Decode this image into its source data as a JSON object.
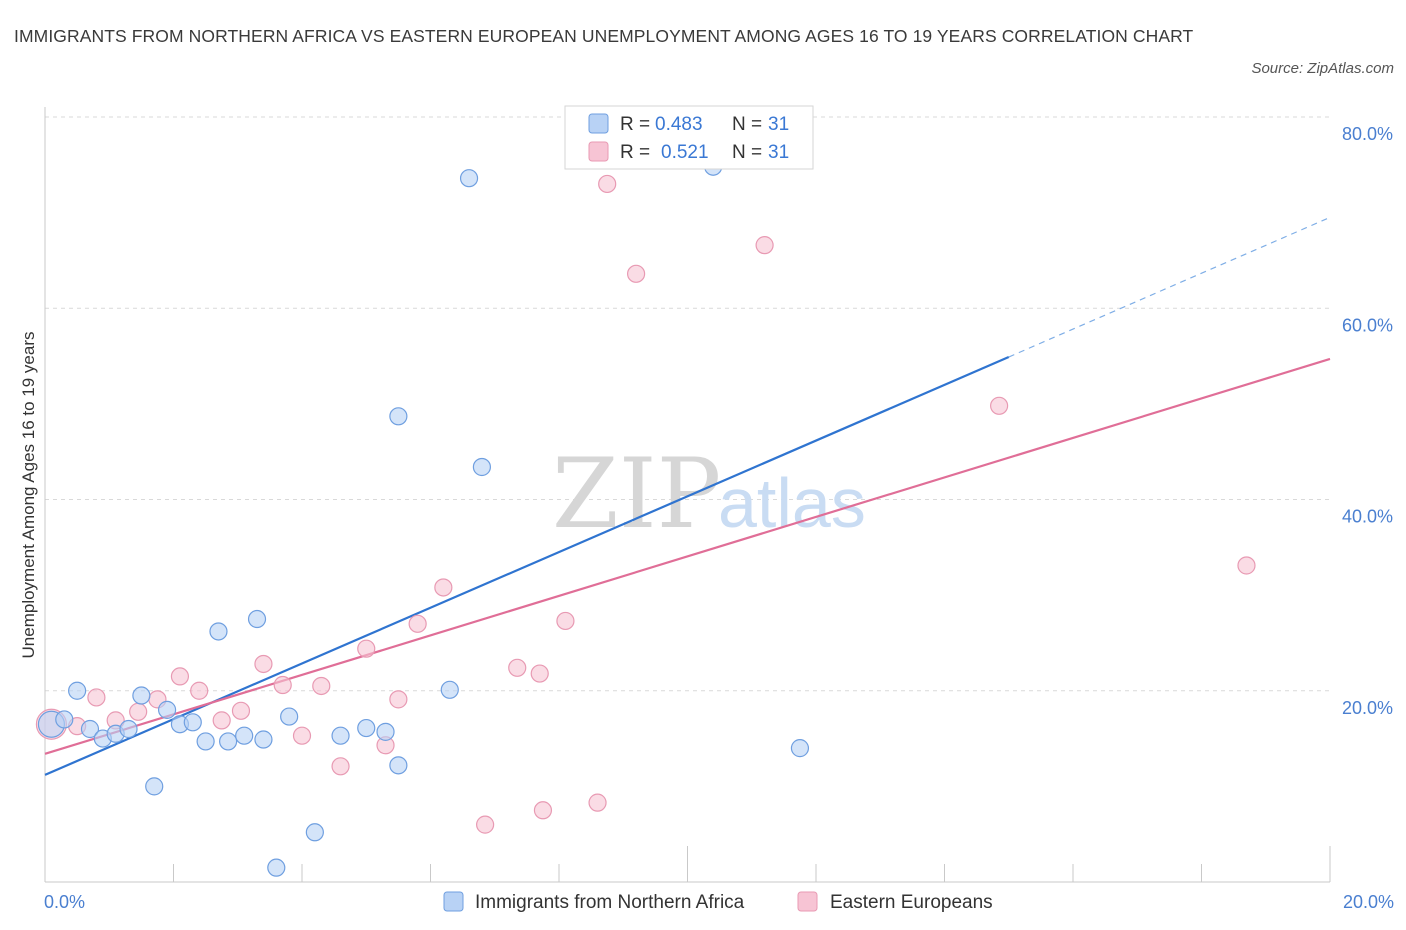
{
  "title": "IMMIGRANTS FROM NORTHERN AFRICA VS EASTERN EUROPEAN UNEMPLOYMENT AMONG AGES 16 TO 19 YEARS CORRELATION CHART",
  "source": "Source: ZipAtlas.com",
  "watermark": {
    "zip": "ZIP",
    "atlas": "atlas"
  },
  "colors": {
    "blue_fill": "#b8d2f5",
    "blue_stroke": "#6f9fe0",
    "blue_line": "#2f74d0",
    "pink_fill": "#f7c4d4",
    "pink_stroke": "#e89ab3",
    "pink_line": "#e06e97",
    "grid": "#d9d9d9",
    "axis_label": "#4a7fd0"
  },
  "legend": {
    "rows": [
      {
        "r_label": "R =",
        "r_value": "0.483",
        "n_label": "N =",
        "n_value": "31"
      },
      {
        "r_label": "R =",
        "r_value": "0.521",
        "n_label": "N =",
        "n_value": "31"
      }
    ]
  },
  "chart_data": {
    "type": "scatter",
    "title": "IMMIGRANTS FROM NORTHERN AFRICA VS EASTERN EUROPEAN UNEMPLOYMENT AMONG AGES 16 TO 19 YEARS CORRELATION CHART",
    "xlabel": "",
    "ylabel": "Unemployment Among Ages 16 to 19 years",
    "xlim": [
      0,
      20
    ],
    "ylim": [
      0,
      80
    ],
    "x_tick_labels": [
      "0.0%",
      "20.0%"
    ],
    "y_ticks": [
      20,
      40,
      60,
      80
    ],
    "y_tick_labels": [
      "20.0%",
      "40.0%",
      "60.0%",
      "80.0%"
    ],
    "grid": true,
    "legend_position": "top-center",
    "series": [
      {
        "name": "Immigrants from Northern Africa",
        "color": "#6f9fe0",
        "points": [
          [
            0.1,
            16.5
          ],
          [
            0.3,
            17.0
          ],
          [
            0.5,
            20.0
          ],
          [
            0.7,
            16.0
          ],
          [
            0.9,
            15.0
          ],
          [
            1.1,
            15.5
          ],
          [
            1.3,
            16.0
          ],
          [
            1.5,
            19.5
          ],
          [
            1.7,
            10.0
          ],
          [
            1.9,
            18.0
          ],
          [
            2.1,
            16.5
          ],
          [
            2.3,
            16.7
          ],
          [
            2.5,
            14.7
          ],
          [
            2.7,
            26.2
          ],
          [
            2.85,
            14.7
          ],
          [
            3.1,
            15.3
          ],
          [
            3.3,
            27.5
          ],
          [
            3.4,
            14.9
          ],
          [
            3.6,
            1.5
          ],
          [
            3.8,
            17.3
          ],
          [
            4.2,
            5.2
          ],
          [
            4.6,
            15.3
          ],
          [
            5.0,
            16.1
          ],
          [
            5.3,
            15.7
          ],
          [
            5.5,
            12.2
          ],
          [
            5.5,
            48.7
          ],
          [
            6.3,
            20.1
          ],
          [
            6.6,
            73.6
          ],
          [
            6.8,
            43.4
          ],
          [
            10.4,
            74.8
          ],
          [
            11.75,
            14.0
          ]
        ]
      },
      {
        "name": "Eastern Europeans",
        "color": "#e89ab3",
        "points": [
          [
            0.1,
            16.5
          ],
          [
            0.5,
            16.3
          ],
          [
            0.8,
            19.3
          ],
          [
            1.1,
            16.9
          ],
          [
            1.45,
            17.8
          ],
          [
            1.75,
            19.1
          ],
          [
            2.1,
            21.5
          ],
          [
            2.4,
            20.0
          ],
          [
            2.75,
            16.9
          ],
          [
            3.05,
            17.9
          ],
          [
            3.4,
            22.8
          ],
          [
            3.7,
            20.6
          ],
          [
            4.0,
            15.3
          ],
          [
            4.3,
            20.5
          ],
          [
            4.6,
            12.1
          ],
          [
            5.0,
            24.4
          ],
          [
            5.3,
            14.3
          ],
          [
            5.5,
            19.1
          ],
          [
            5.8,
            27.0
          ],
          [
            6.2,
            30.8
          ],
          [
            6.85,
            6.0
          ],
          [
            7.35,
            22.4
          ],
          [
            7.7,
            21.8
          ],
          [
            7.75,
            7.5
          ],
          [
            8.1,
            27.3
          ],
          [
            8.6,
            8.3
          ],
          [
            8.75,
            73.0
          ],
          [
            9.2,
            63.6
          ],
          [
            11.2,
            66.6
          ],
          [
            14.85,
            49.8
          ],
          [
            18.7,
            33.1
          ]
        ]
      }
    ],
    "trend_lines": [
      {
        "series": "Immigrants from Northern Africa",
        "x0": 0,
        "y0": 11.2,
        "x1": 15.0,
        "y1": 54.9,
        "dashed_to_x": 20.0,
        "dashed_to_y": 69.5
      },
      {
        "series": "Eastern Europeans",
        "x0": 0,
        "y0": 13.4,
        "x1": 20.0,
        "y1": 54.7
      }
    ]
  },
  "bottom_legend": [
    {
      "label": "Immigrants from Northern Africa"
    },
    {
      "label": "Eastern Europeans"
    }
  ]
}
